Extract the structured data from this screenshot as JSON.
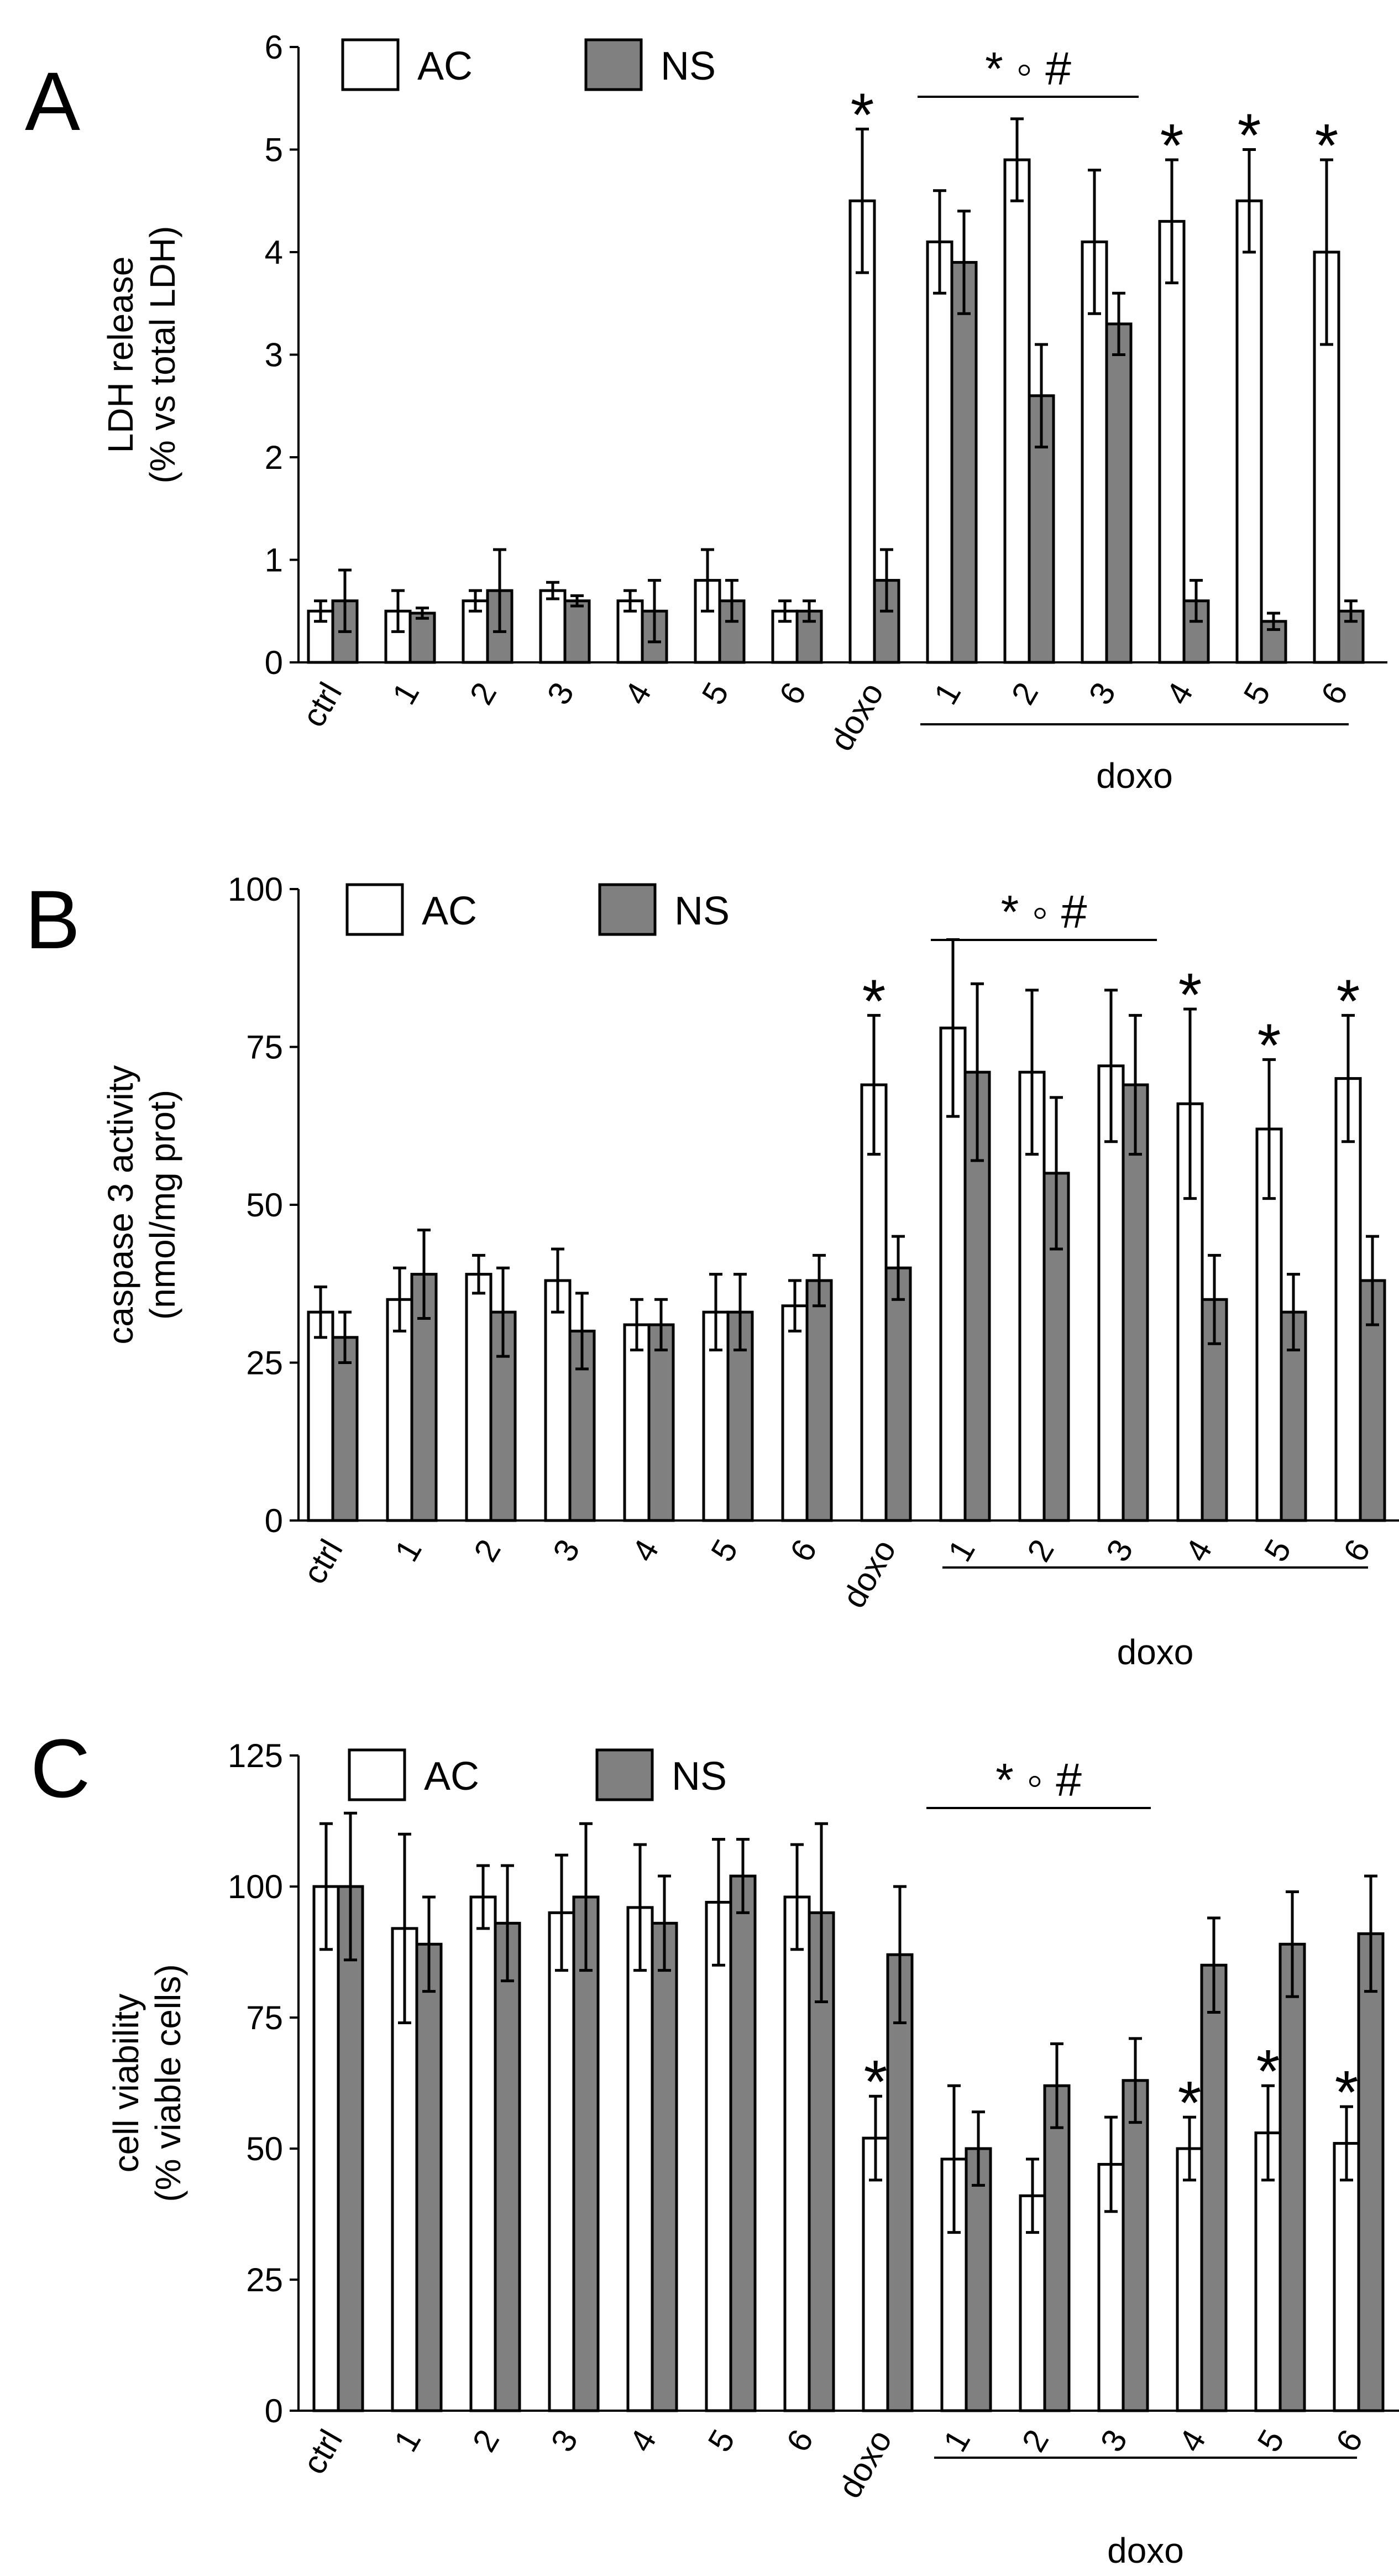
{
  "chart_data": [
    {
      "type": "bar",
      "panel": "A",
      "title": "",
      "ylabel_lines": [
        "LDH release",
        "(% vs total LDH)"
      ],
      "xlabel": "",
      "ylim": [
        0,
        6
      ],
      "yticks": [
        0,
        1,
        2,
        3,
        4,
        5,
        6
      ],
      "categories": [
        "ctrl",
        "1",
        "2",
        "3",
        "4",
        "5",
        "6",
        "doxo",
        "1",
        "2",
        "3",
        "4",
        "5",
        "6"
      ],
      "group_label": "doxo",
      "legend": [
        "AC",
        "NS"
      ],
      "series": [
        {
          "name": "AC",
          "color": "#ffffff",
          "values": [
            0.5,
            0.5,
            0.6,
            0.7,
            0.6,
            0.8,
            0.5,
            4.5,
            4.1,
            4.9,
            4.1,
            4.3,
            4.5,
            4.0
          ],
          "errors": [
            0.1,
            0.2,
            0.1,
            0.08,
            0.1,
            0.3,
            0.1,
            0.7,
            0.5,
            0.4,
            0.7,
            0.6,
            0.5,
            0.9
          ]
        },
        {
          "name": "NS",
          "color": "#808080",
          "values": [
            0.6,
            0.48,
            0.7,
            0.6,
            0.5,
            0.6,
            0.5,
            0.8,
            3.9,
            2.6,
            3.3,
            0.6,
            0.4,
            0.5
          ],
          "errors": [
            0.3,
            0.05,
            0.4,
            0.05,
            0.3,
            0.2,
            0.1,
            0.3,
            0.5,
            0.5,
            0.3,
            0.2,
            0.08,
            0.1
          ]
        }
      ],
      "star_marks": [
        7,
        11,
        12,
        13
      ],
      "bracket": {
        "from": 8,
        "to": 10,
        "text": "* ◦ #"
      }
    },
    {
      "type": "bar",
      "panel": "B",
      "title": "",
      "ylabel_lines": [
        "caspase 3 activity",
        "(nmol/mg prot)"
      ],
      "xlabel": "",
      "ylim": [
        0,
        100
      ],
      "yticks": [
        0,
        25,
        50,
        75,
        100
      ],
      "categories": [
        "ctrl",
        "1",
        "2",
        "3",
        "4",
        "5",
        "6",
        "doxo",
        "1",
        "2",
        "3",
        "4",
        "5",
        "6"
      ],
      "group_label": "doxo",
      "legend": [
        "AC",
        "NS"
      ],
      "series": [
        {
          "name": "AC",
          "color": "#ffffff",
          "values": [
            33,
            35,
            39,
            38,
            31,
            33,
            34,
            69,
            78,
            71,
            72,
            66,
            62,
            70
          ],
          "errors": [
            4,
            5,
            3,
            5,
            4,
            6,
            4,
            11,
            14,
            13,
            12,
            15,
            11,
            10
          ]
        },
        {
          "name": "NS",
          "color": "#808080",
          "values": [
            29,
            39,
            33,
            30,
            31,
            33,
            38,
            40,
            71,
            55,
            69,
            35,
            33,
            38
          ],
          "errors": [
            4,
            7,
            7,
            6,
            4,
            6,
            4,
            5,
            14,
            12,
            11,
            7,
            6,
            7
          ]
        }
      ],
      "star_marks": [
        7,
        11,
        12,
        13
      ],
      "bracket": {
        "from": 8,
        "to": 10,
        "text": "* ◦ #"
      }
    },
    {
      "type": "bar",
      "panel": "C",
      "title": "",
      "ylabel_lines": [
        "cell viability",
        "(% viable cells)"
      ],
      "xlabel": "",
      "ylim": [
        0,
        125
      ],
      "yticks": [
        0,
        25,
        50,
        75,
        100,
        125
      ],
      "categories": [
        "ctrl",
        "1",
        "2",
        "3",
        "4",
        "5",
        "6",
        "doxo",
        "1",
        "2",
        "3",
        "4",
        "5",
        "6"
      ],
      "group_label": "doxo",
      "legend": [
        "AC",
        "NS"
      ],
      "series": [
        {
          "name": "AC",
          "color": "#ffffff",
          "values": [
            100,
            92,
            98,
            95,
            96,
            97,
            98,
            52,
            48,
            41,
            47,
            50,
            53,
            51
          ],
          "errors": [
            12,
            18,
            6,
            11,
            12,
            12,
            10,
            8,
            14,
            7,
            9,
            6,
            9,
            7
          ]
        },
        {
          "name": "NS",
          "color": "#808080",
          "values": [
            100,
            89,
            93,
            98,
            93,
            102,
            95,
            87,
            50,
            62,
            63,
            85,
            89,
            91
          ],
          "errors": [
            14,
            9,
            11,
            14,
            9,
            7,
            17,
            13,
            7,
            8,
            8,
            9,
            10,
            11
          ]
        }
      ],
      "star_marks": [
        7,
        11,
        12,
        13
      ],
      "bracket": {
        "from": 8,
        "to": 10,
        "text": "* ◦ #"
      }
    }
  ]
}
